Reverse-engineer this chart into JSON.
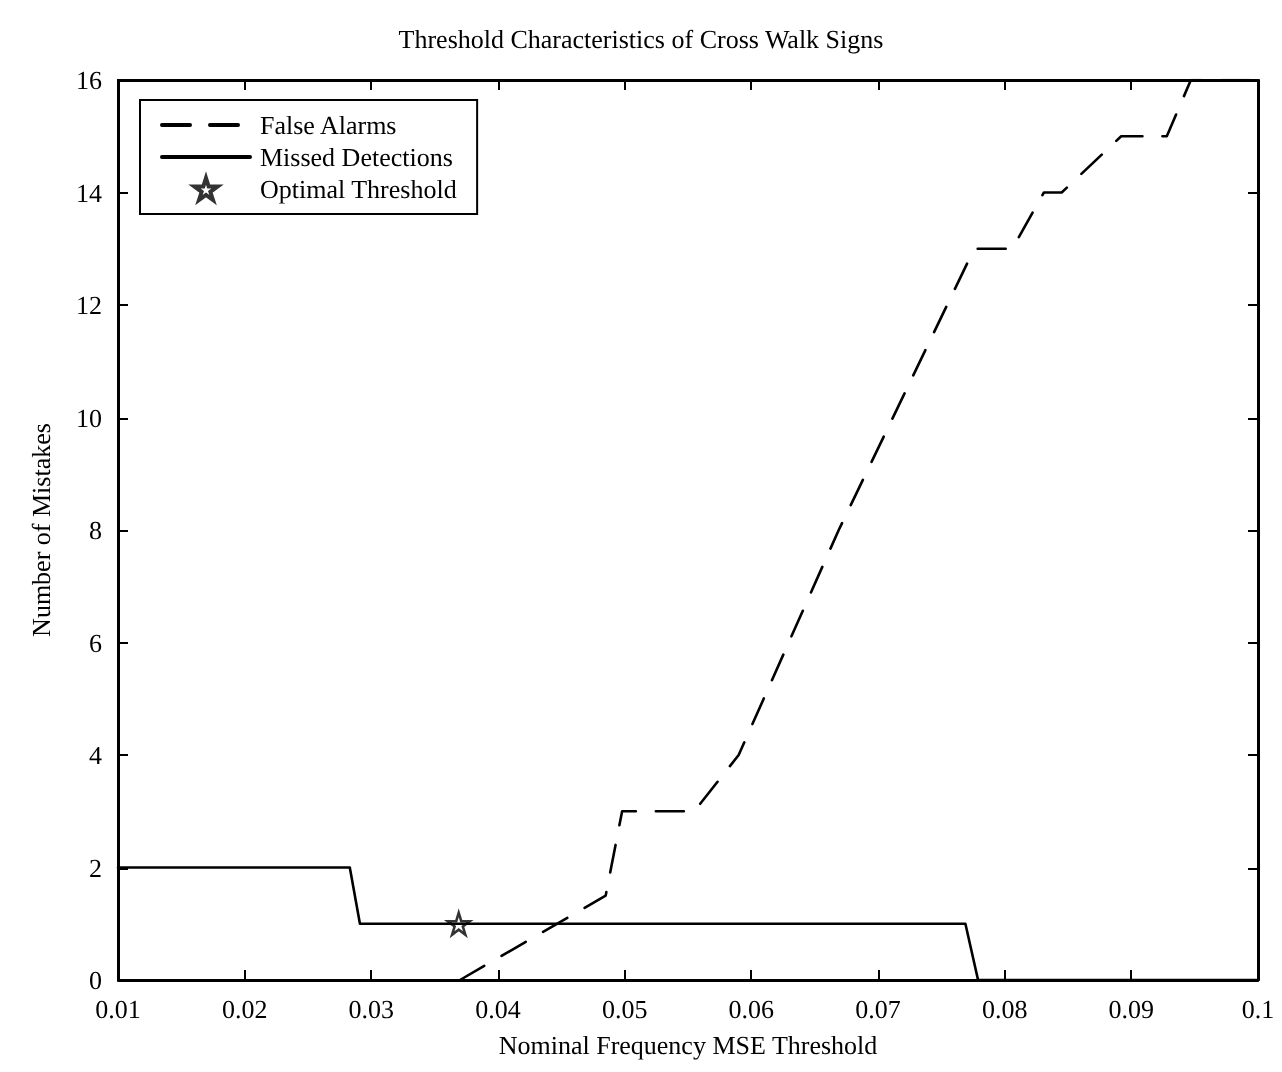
{
  "chart_data": {
    "type": "line",
    "title": "Threshold Characteristics of Cross Walk Signs",
    "xlabel": "Nominal Frequency MSE Threshold",
    "ylabel": "Number of Mistakes",
    "xlim": [
      0.01,
      0.1
    ],
    "xticks": [
      0.01,
      0.02,
      0.03,
      0.04,
      0.05,
      0.06,
      0.07,
      0.08,
      0.09,
      0.1
    ],
    "ylim": [
      0,
      16
    ],
    "yticks": [
      0,
      2,
      4,
      6,
      8,
      10,
      12,
      14,
      16
    ],
    "grid": false,
    "legend": "top left",
    "marker": "none",
    "series": [
      {
        "name": "False Alarms",
        "color": "#000000",
        "line_style": "dashed",
        "x": [
          0.037,
          0.0485,
          0.0498,
          0.0555,
          0.059,
          0.0669,
          0.0776,
          0.0806,
          0.0831,
          0.0845,
          0.0892,
          0.0928,
          0.0947,
          0.1
        ],
        "values": [
          0,
          1.5,
          3,
          3,
          4,
          8,
          13,
          13,
          14,
          14,
          15,
          15,
          16,
          16
        ]
      },
      {
        "name": "Missed Detections",
        "color": "#000000",
        "line_style": "solid",
        "x": [
          0.01,
          0.0283,
          0.0291,
          0.0769,
          0.0779,
          0.1
        ],
        "values": [
          2,
          2,
          1,
          1,
          0,
          0
        ]
      },
      {
        "name": "Optimal Threshold",
        "type": "scatter",
        "marker": "star",
        "color": "#000000",
        "x": [
          0.0369
        ],
        "values": [
          1
        ]
      }
    ]
  }
}
